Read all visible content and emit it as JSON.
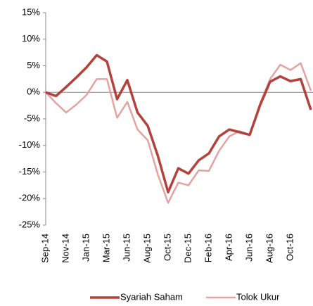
{
  "chart_data": {
    "type": "line",
    "categories": [
      "Sep-14",
      null,
      "Nov-14",
      null,
      "Jan-15",
      null,
      "Mar-15",
      null,
      "Jun-15",
      null,
      "Aug-15",
      null,
      "Oct-15",
      null,
      "Dec-15",
      null,
      "Feb-16",
      null,
      "Apr-16",
      null,
      "Jun-16",
      null,
      "Aug-16",
      null,
      "Oct-16",
      null,
      null
    ],
    "series": [
      {
        "name": "Syariah Saham",
        "color": "#b5413c",
        "values": [
          0,
          -0.7,
          1,
          2.8,
          4.7,
          7,
          5.8,
          -1.3,
          2.3,
          -3.8,
          -6.3,
          -12,
          -18.8,
          -14.3,
          -15.3,
          -12.8,
          -11.5,
          -8.3,
          -7,
          -7.5,
          -8,
          -2.5,
          2,
          3,
          2.1,
          2.5,
          -3.3
        ]
      },
      {
        "name": "Tolok Ukur",
        "color": "#e3a3a0",
        "values": [
          0,
          -2,
          -3.8,
          -2.3,
          -0.5,
          2.5,
          2.5,
          -4.8,
          -1.8,
          -7,
          -9,
          -15.5,
          -20.8,
          -17,
          -17.5,
          -14.7,
          -14.8,
          -11,
          -8.3,
          -7.3,
          -8,
          -2.2,
          2.5,
          5.2,
          4.2,
          5.5,
          0.3
        ]
      }
    ],
    "ylim": [
      -25,
      15
    ],
    "yticks": [
      {
        "value": -25,
        "label": "-25%"
      },
      {
        "value": -20,
        "label": "-20%"
      },
      {
        "value": -15,
        "label": "-15%"
      },
      {
        "value": -10,
        "label": "-10%"
      },
      {
        "value": -5,
        "label": "-5%"
      },
      {
        "value": 0,
        "label": "0%"
      },
      {
        "value": 5,
        "label": "5%"
      },
      {
        "value": 10,
        "label": "10%"
      },
      {
        "value": 15,
        "label": "15%"
      }
    ],
    "legend": "bottom"
  }
}
